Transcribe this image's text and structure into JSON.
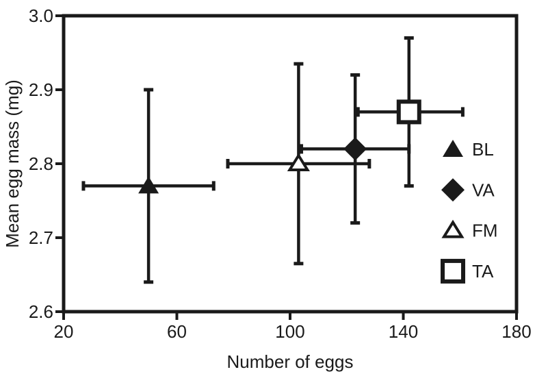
{
  "chart_data": {
    "type": "scatter",
    "title": "",
    "xlabel": "Number of eggs",
    "ylabel": "Mean egg mass (mg)",
    "xlim": [
      20,
      180
    ],
    "ylim": [
      2.6,
      3.0
    ],
    "xticks": [
      "20",
      "60",
      "100",
      "140",
      "180"
    ],
    "yticks": [
      "2.6",
      "2.7",
      "2.8",
      "2.9",
      "3.0"
    ],
    "grid": false,
    "legend_position": "inside-right",
    "series": [
      {
        "name": "BL",
        "marker": "triangle-filled",
        "x": 50,
        "y": 2.77,
        "x_err": [
          27,
          73
        ],
        "y_err": [
          2.64,
          2.9
        ]
      },
      {
        "name": "VA",
        "marker": "diamond-filled",
        "x": 123,
        "y": 2.82,
        "x_err": [
          104,
          142
        ],
        "y_err": [
          2.72,
          2.92
        ]
      },
      {
        "name": "FM",
        "marker": "triangle-open",
        "x": 103,
        "y": 2.8,
        "x_err": [
          78,
          128
        ],
        "y_err": [
          2.665,
          2.935
        ]
      },
      {
        "name": "TA",
        "marker": "square-open",
        "x": 142,
        "y": 2.87,
        "x_err": [
          124,
          161
        ],
        "y_err": [
          2.77,
          2.97
        ]
      }
    ],
    "legend_order": [
      "BL",
      "VA",
      "FM",
      "TA"
    ],
    "colors": {
      "foreground": "#1a1a1a",
      "background": "#ffffff",
      "open_marker_fill": "#ffffff"
    }
  }
}
